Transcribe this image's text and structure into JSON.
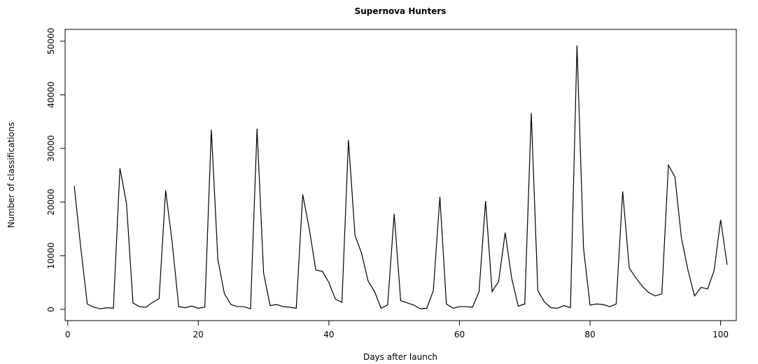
{
  "chart_data": {
    "type": "line",
    "title": "Supernova Hunters",
    "x_label": "Days after launch",
    "y_label": "Number of classifications",
    "x": [
      1,
      2,
      3,
      4,
      5,
      6,
      7,
      8,
      9,
      10,
      11,
      12,
      13,
      14,
      15,
      16,
      17,
      18,
      19,
      20,
      21,
      22,
      23,
      24,
      25,
      26,
      27,
      28,
      29,
      30,
      31,
      32,
      33,
      34,
      35,
      36,
      37,
      38,
      39,
      40,
      41,
      42,
      43,
      44,
      45,
      46,
      47,
      48,
      49,
      50,
      51,
      52,
      53,
      54,
      55,
      56,
      57,
      58,
      59,
      60,
      61,
      62,
      63,
      64,
      65,
      66,
      67,
      68,
      69,
      70,
      71,
      72,
      73,
      74,
      75,
      76,
      77,
      78,
      79,
      80,
      81,
      82,
      83,
      84,
      85,
      86,
      87,
      88,
      89,
      90,
      91,
      92,
      93,
      94,
      95,
      96,
      97,
      98,
      99,
      100,
      101
    ],
    "values": [
      23000,
      11500,
      1000,
      400,
      100,
      300,
      200,
      26300,
      19800,
      1200,
      500,
      400,
      1300,
      2000,
      22200,
      12500,
      500,
      300,
      600,
      200,
      400,
      33500,
      9300,
      2900,
      900,
      500,
      500,
      100,
      33700,
      6800,
      700,
      900,
      500,
      400,
      200,
      21400,
      15000,
      7300,
      7100,
      5000,
      1900,
      1300,
      31600,
      13800,
      10500,
      5300,
      3300,
      200,
      800,
      17800,
      1600,
      1200,
      800,
      100,
      200,
      3500,
      21000,
      1000,
      200,
      500,
      500,
      400,
      3300,
      20200,
      3300,
      5200,
      14300,
      5800,
      600,
      1000,
      36600,
      3500,
      1400,
      300,
      200,
      700,
      300,
      49200,
      11400,
      800,
      1000,
      900,
      500,
      1000,
      22000,
      7700,
      5900,
      4300,
      3100,
      2500,
      2900,
      26900,
      24700,
      13300,
      7300,
      2500,
      4100,
      3800,
      7200,
      16700,
      8300
    ],
    "color": "#000000",
    "xlim": [
      -0.4,
      102.4
    ],
    "xticks": [
      0,
      20,
      40,
      60,
      80,
      100
    ],
    "ylim": [
      -2100,
      52200
    ],
    "yticks": [
      0,
      10000,
      20000,
      30000,
      40000,
      50000
    ]
  }
}
